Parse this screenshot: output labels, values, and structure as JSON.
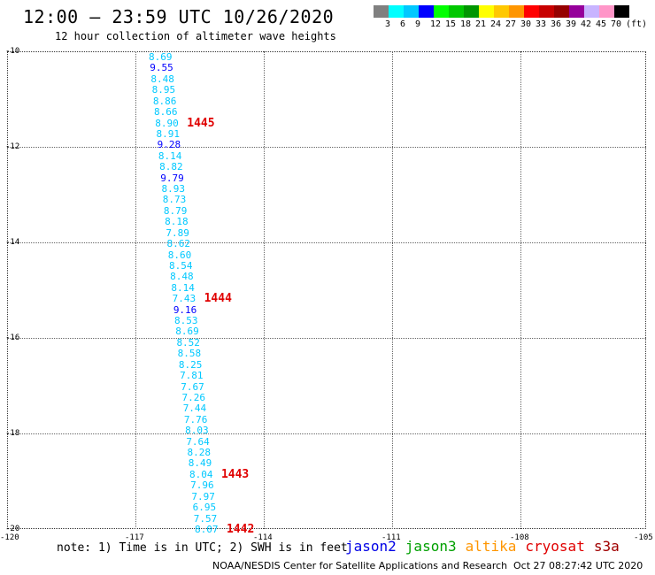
{
  "header": {
    "title": "12:00 – 23:59 UTC 10/26/2020",
    "subtitle": "12 hour collection of altimeter wave heights"
  },
  "legend": {
    "colors": [
      "#808080",
      "#00ffff",
      "#00c8ff",
      "#0000ff",
      "#00ff00",
      "#00c800",
      "#009600",
      "#ffff00",
      "#ffc800",
      "#ff9600",
      "#ff0000",
      "#c80000",
      "#960000",
      "#96009b",
      "#c8b4ff",
      "#ff96c8",
      "#000000"
    ],
    "labels": [
      "3",
      "6",
      "9",
      "12",
      "15",
      "18",
      "21",
      "24",
      "27",
      "30",
      "33",
      "36",
      "39",
      "42",
      "45",
      "70",
      "(ft)"
    ]
  },
  "axes": {
    "lat_labels": [
      "-10",
      "-12",
      "-14",
      "-16",
      "-18",
      "-20"
    ],
    "lon_labels": [
      "-120",
      "-117",
      "-114",
      "-111",
      "-108",
      "-105"
    ]
  },
  "observations": [
    {
      "value": "8.69",
      "color": "#00c8ff"
    },
    {
      "value": "9.55",
      "color": "#0000ff"
    },
    {
      "value": "8.48",
      "color": "#00c8ff"
    },
    {
      "value": "8.95",
      "color": "#00c8ff"
    },
    {
      "value": "8.86",
      "color": "#00c8ff"
    },
    {
      "value": "8.66",
      "color": "#00c8ff"
    },
    {
      "value": "8.90",
      "color": "#00c8ff"
    },
    {
      "value": "8.91",
      "color": "#00c8ff"
    },
    {
      "value": "9.28",
      "color": "#0000ff"
    },
    {
      "value": "8.14",
      "color": "#00c8ff"
    },
    {
      "value": "8.82",
      "color": "#00c8ff"
    },
    {
      "value": "9.79",
      "color": "#0000ff"
    },
    {
      "value": "8.93",
      "color": "#00c8ff"
    },
    {
      "value": "8.73",
      "color": "#00c8ff"
    },
    {
      "value": "8.79",
      "color": "#00c8ff"
    },
    {
      "value": "8.18",
      "color": "#00c8ff"
    },
    {
      "value": "7.89",
      "color": "#00c8ff"
    },
    {
      "value": "8.62",
      "color": "#00c8ff"
    },
    {
      "value": "8.60",
      "color": "#00c8ff"
    },
    {
      "value": "8.54",
      "color": "#00c8ff"
    },
    {
      "value": "8.48",
      "color": "#00c8ff"
    },
    {
      "value": "8.14",
      "color": "#00c8ff"
    },
    {
      "value": "7.43",
      "color": "#00c8ff"
    },
    {
      "value": "9.16",
      "color": "#0000ff"
    },
    {
      "value": "8.53",
      "color": "#00c8ff"
    },
    {
      "value": "8.69",
      "color": "#00c8ff"
    },
    {
      "value": "8.52",
      "color": "#00c8ff"
    },
    {
      "value": "8.58",
      "color": "#00c8ff"
    },
    {
      "value": "8.25",
      "color": "#00c8ff"
    },
    {
      "value": "7.81",
      "color": "#00c8ff"
    },
    {
      "value": "7.67",
      "color": "#00c8ff"
    },
    {
      "value": "7.26",
      "color": "#00c8ff"
    },
    {
      "value": "7.44",
      "color": "#00c8ff"
    },
    {
      "value": "7.76",
      "color": "#00c8ff"
    },
    {
      "value": "8.03",
      "color": "#00c8ff"
    },
    {
      "value": "7.64",
      "color": "#00c8ff"
    },
    {
      "value": "8.28",
      "color": "#00c8ff"
    },
    {
      "value": "8.49",
      "color": "#00c8ff"
    },
    {
      "value": "8.04",
      "color": "#00c8ff"
    },
    {
      "value": "7.96",
      "color": "#00c8ff"
    },
    {
      "value": "7.97",
      "color": "#00c8ff"
    },
    {
      "value": "6.95",
      "color": "#00c8ff"
    },
    {
      "value": "7.57",
      "color": "#00c8ff"
    },
    {
      "value": "8.07",
      "color": "#00c8ff"
    }
  ],
  "pass_times": [
    "1445",
    "1444",
    "1443",
    "1442"
  ],
  "footer": {
    "note": "note: 1) Time is in UTC; 2) SWH is in feet",
    "satellites": [
      {
        "name": "jason2",
        "color": "#0000e6"
      },
      {
        "name": "jason3",
        "color": "#00a000"
      },
      {
        "name": "altika",
        "color": "#ff9600"
      },
      {
        "name": "cryosat",
        "color": "#e00000"
      },
      {
        "name": "s3a",
        "color": "#a00000"
      }
    ],
    "credit": "NOAA/NESDIS Center for Satellite Applications and Research",
    "timestamp": "Oct 27 08:27:42 UTC 2020"
  }
}
